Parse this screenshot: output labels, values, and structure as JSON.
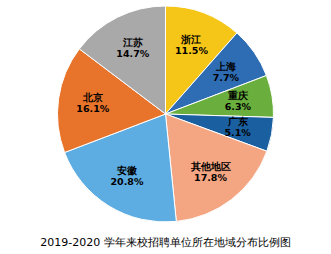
{
  "chart_data": {
    "type": "pie",
    "title": "2019-2020 学年来校招聘单位所在地域分布比例图",
    "categories": [
      "浙江",
      "上海",
      "重庆",
      "广东",
      "其他地区",
      "安徽",
      "北京",
      "江苏"
    ],
    "values": [
      11.5,
      7.7,
      6.3,
      5.1,
      17.8,
      20.8,
      16.1,
      14.7
    ],
    "value_labels": [
      "11.5%",
      "7.7%",
      "6.3%",
      "5.1%",
      "17.8%",
      "20.8%",
      "16.1%",
      "14.7%"
    ],
    "colors": [
      "#F5C518",
      "#2E6DB4",
      "#6AAF3D",
      "#1A5FA0",
      "#F4A582",
      "#5DADE2",
      "#E8732A",
      "#A9A9A9"
    ],
    "data_labels": true
  }
}
